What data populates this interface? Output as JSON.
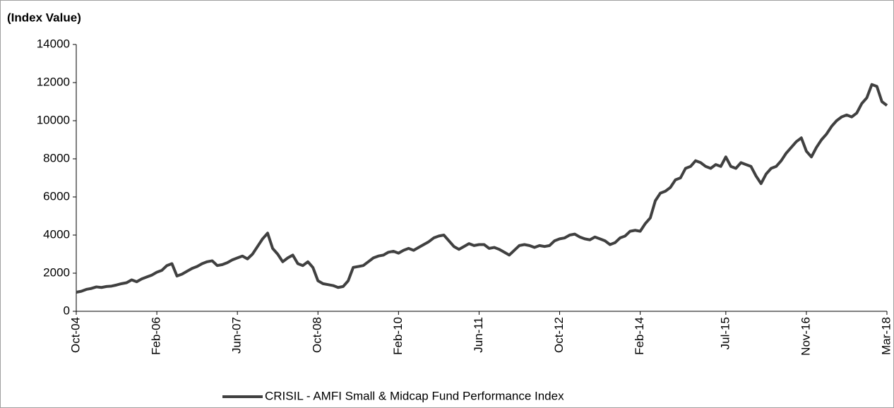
{
  "chart_data": {
    "type": "line",
    "y_axis_label": "(Index Value)",
    "categories": [
      "Oct-04",
      null,
      null,
      null,
      null,
      null,
      null,
      null,
      null,
      null,
      null,
      null,
      null,
      null,
      null,
      null,
      "Feb-06",
      null,
      null,
      null,
      null,
      null,
      null,
      null,
      null,
      null,
      null,
      null,
      null,
      null,
      null,
      null,
      "Jun-07",
      null,
      null,
      null,
      null,
      null,
      null,
      null,
      null,
      null,
      null,
      null,
      null,
      null,
      null,
      null,
      "Oct-08",
      null,
      null,
      null,
      null,
      null,
      null,
      null,
      null,
      null,
      null,
      null,
      null,
      null,
      null,
      null,
      "Feb-10",
      null,
      null,
      null,
      null,
      null,
      null,
      null,
      null,
      null,
      null,
      null,
      null,
      null,
      null,
      null,
      "Jun-11",
      null,
      null,
      null,
      null,
      null,
      null,
      null,
      null,
      null,
      null,
      null,
      null,
      null,
      null,
      null,
      "Oct-12",
      null,
      null,
      null,
      null,
      null,
      null,
      null,
      null,
      null,
      null,
      null,
      null,
      null,
      null,
      null,
      "Feb-14",
      null,
      null,
      null,
      null,
      null,
      null,
      null,
      null,
      null,
      null,
      null,
      null,
      null,
      null,
      null,
      null,
      "Jul-15",
      null,
      null,
      null,
      null,
      null,
      null,
      null,
      null,
      null,
      null,
      null,
      null,
      null,
      null,
      null,
      "Nov-16",
      null,
      null,
      null,
      null,
      null,
      null,
      null,
      null,
      null,
      null,
      null,
      null,
      null,
      null,
      null,
      "Mar-18"
    ],
    "series": [
      {
        "name": "CRISIL - AMFI Small & Midcap Fund Performance Index",
        "color": "#404040",
        "values": [
          1000,
          1050,
          1150,
          1200,
          1280,
          1250,
          1300,
          1320,
          1380,
          1450,
          1500,
          1650,
          1550,
          1700,
          1800,
          1900,
          2050,
          2150,
          2400,
          2500,
          1850,
          1950,
          2100,
          2250,
          2350,
          2500,
          2600,
          2650,
          2400,
          2450,
          2550,
          2700,
          2800,
          2900,
          2750,
          3000,
          3400,
          3800,
          4100,
          3300,
          3000,
          2600,
          2800,
          2950,
          2500,
          2400,
          2600,
          2300,
          1600,
          1450,
          1400,
          1350,
          1250,
          1300,
          1600,
          2300,
          2350,
          2400,
          2600,
          2800,
          2900,
          2950,
          3100,
          3150,
          3050,
          3200,
          3300,
          3200,
          3350,
          3500,
          3650,
          3850,
          3950,
          4000,
          3700,
          3400,
          3250,
          3400,
          3550,
          3450,
          3500,
          3500,
          3300,
          3350,
          3250,
          3100,
          2950,
          3200,
          3450,
          3500,
          3450,
          3350,
          3450,
          3400,
          3450,
          3700,
          3800,
          3850,
          4000,
          4050,
          3900,
          3800,
          3750,
          3900,
          3800,
          3700,
          3500,
          3600,
          3850,
          3950,
          4200,
          4250,
          4200,
          4600,
          4900,
          5800,
          6200,
          6300,
          6500,
          6900,
          7000,
          7500,
          7600,
          7900,
          7800,
          7600,
          7500,
          7700,
          7600,
          8100,
          7600,
          7500,
          7800,
          7700,
          7600,
          7100,
          6700,
          7200,
          7500,
          7600,
          7900,
          8300,
          8600,
          8900,
          9100,
          8400,
          8100,
          8600,
          9000,
          9300,
          9700,
          10000,
          10200,
          10300,
          10200,
          10400,
          10900,
          11200,
          11900,
          11800,
          11000,
          10800
        ]
      }
    ],
    "ylim": [
      0,
      14000
    ],
    "yticks": [
      0,
      2000,
      4000,
      6000,
      8000,
      10000,
      12000,
      14000
    ],
    "grid": false,
    "legend": "bottom"
  }
}
